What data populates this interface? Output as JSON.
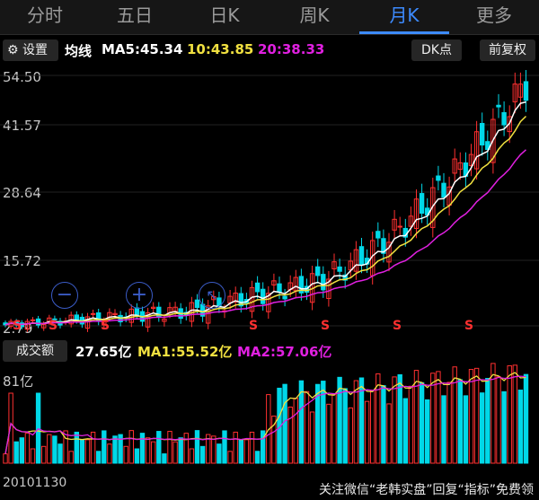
{
  "tabs": [
    "分时",
    "五日",
    "日K",
    "周K",
    "月K",
    "更多"
  ],
  "active_tab": "月K",
  "toolbar": {
    "settings_label": "设置",
    "ma_label": "均线",
    "ma5": "MA5:45.34",
    "ma10": "10:43.85",
    "ma20": "20:38.33",
    "dk_label": "DK点",
    "fq_label": "前复权"
  },
  "price_axis": [
    "54.50",
    "41.57",
    "28.64",
    "15.72",
    "2.79"
  ],
  "signal_label": "S",
  "volume_bar": {
    "label": "成交额",
    "value": "27.65亿",
    "ma1": "MA1:55.52亿",
    "ma2": "MA2:57.06亿",
    "axis_top": "81亿"
  },
  "date_label": "20101130",
  "watermark": "关注微信“老韩实盘”回复“指标”免费领",
  "colors": {
    "up": "#ff3030",
    "down": "#00d8e8",
    "ma5": "#ffffff",
    "ma10": "#f0e040",
    "ma20": "#e020e0",
    "accent": "#3d8bff"
  }
}
